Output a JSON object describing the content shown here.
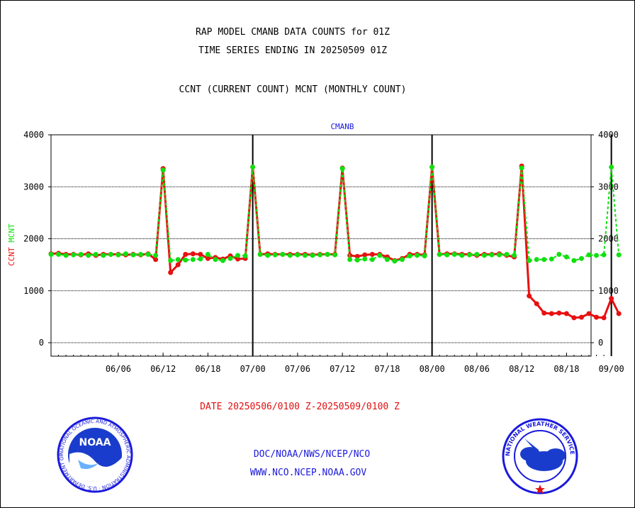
{
  "header": {
    "title_line1": "RAP MODEL CMANB DATA COUNTS for 01Z",
    "title_line2": "TIME SERIES ENDING IN 20250509 01Z",
    "subtitle": "CCNT (CURRENT COUNT) MCNT (MONTHLY COUNT)"
  },
  "footer": {
    "date_range": "DATE 20250506/0100 Z-20250509/0100 Z",
    "org_line": "DOC/NOAA/NWS/NCEP/NCO",
    "website": "WWW.NCO.NCEP.NOAA.GOV"
  },
  "logos": {
    "noaa_label": "NOAA",
    "noaa_ring_text": "NATIONAL OCEANIC AND ATMOSPHERIC ADMINISTRATION · U.S. DEPARTMENT OF COMMERCE ·",
    "nws_ring_text": "NATIONAL WEATHER SERVICE"
  },
  "colors": {
    "ccnt": "#e81010",
    "mcnt": "#10e010",
    "plot_label": "#1a1adc"
  },
  "chart_data": {
    "type": "line",
    "title": "CMANB",
    "ylabel_left": [
      "CCNT",
      "MCNT"
    ],
    "ylim": [
      -250,
      4000
    ],
    "yticks": [
      0,
      1000,
      2000,
      3000,
      4000
    ],
    "x_domain_days": [
      0,
      120
    ],
    "xticks": [
      {
        "label": "06/06",
        "day": 9
      },
      {
        "label": "06/12",
        "day": 15
      },
      {
        "label": "06/18",
        "day": 21
      },
      {
        "label": "07/00",
        "day": 27
      },
      {
        "label": "07/06",
        "day": 33
      },
      {
        "label": "07/12",
        "day": 39
      },
      {
        "label": "07/18",
        "day": 45
      },
      {
        "label": "08/00",
        "day": 51
      },
      {
        "label": "08/06",
        "day": 57
      },
      {
        "label": "08/12",
        "day": 63
      },
      {
        "label": "08/18",
        "day": 69
      },
      {
        "label": "09/00",
        "day": 75
      }
    ],
    "month_lines": [
      27,
      51,
      75
    ],
    "grid": true,
    "series": [
      {
        "name": "CCNT",
        "x": [
          0,
          1,
          2,
          3,
          4,
          5,
          6,
          7,
          8,
          9,
          10,
          11,
          12,
          13,
          14,
          15,
          16,
          17,
          18,
          19,
          20,
          21,
          22,
          23,
          24,
          25,
          26,
          27,
          28,
          29,
          30,
          31,
          32,
          33,
          34,
          35,
          36,
          37,
          38,
          39,
          40,
          41,
          42,
          43,
          44,
          45,
          46,
          47,
          48,
          49,
          50,
          51,
          52,
          53,
          54,
          55,
          56,
          57,
          58,
          59,
          60,
          61,
          62,
          63,
          64,
          65,
          66,
          67,
          68,
          69,
          70,
          71,
          72,
          73,
          74,
          75,
          76
        ],
        "values": [
          1710,
          1720,
          1700,
          1700,
          1690,
          1710,
          1680,
          1700,
          1700,
          1700,
          1690,
          1700,
          1690,
          1710,
          1600,
          3350,
          1350,
          1500,
          1700,
          1710,
          1700,
          1620,
          1640,
          1610,
          1670,
          1610,
          1620,
          3380,
          1700,
          1710,
          1700,
          1700,
          1700,
          1700,
          1700,
          1690,
          1700,
          1700,
          1700,
          3360,
          1680,
          1660,
          1690,
          1700,
          1700,
          1650,
          1580,
          1620,
          1700,
          1700,
          1690,
          3380,
          1700,
          1710,
          1710,
          1700,
          1700,
          1680,
          1700,
          1700,
          1710,
          1680,
          1650,
          3400,
          900,
          750,
          570,
          560,
          570,
          560,
          480,
          490,
          560,
          490,
          480,
          850,
          560
        ]
      },
      {
        "name": "MCNT",
        "x": [
          0,
          1,
          2,
          3,
          4,
          5,
          6,
          7,
          8,
          9,
          10,
          11,
          12,
          13,
          14,
          15,
          16,
          17,
          18,
          19,
          20,
          21,
          22,
          23,
          24,
          25,
          26,
          27,
          28,
          29,
          30,
          31,
          32,
          33,
          34,
          35,
          36,
          37,
          38,
          39,
          40,
          41,
          42,
          43,
          44,
          45,
          46,
          47,
          48,
          49,
          50,
          51,
          52,
          53,
          54,
          55,
          56,
          57,
          58,
          59,
          60,
          61,
          62,
          63,
          64,
          65,
          66,
          67,
          68,
          69,
          70,
          71,
          72,
          73,
          74,
          75,
          76
        ],
        "values": [
          1700,
          1700,
          1680,
          1690,
          1700,
          1680,
          1700,
          1680,
          1700,
          1690,
          1710,
          1690,
          1700,
          1700,
          1680,
          3320,
          1580,
          1600,
          1590,
          1600,
          1610,
          1700,
          1600,
          1580,
          1620,
          1680,
          1670,
          3380,
          1700,
          1680,
          1690,
          1700,
          1680,
          1690,
          1680,
          1680,
          1690,
          1700,
          1690,
          3350,
          1600,
          1590,
          1610,
          1600,
          1680,
          1600,
          1570,
          1600,
          1670,
          1680,
          1670,
          3380,
          1700,
          1690,
          1700,
          1680,
          1690,
          1700,
          1680,
          1690,
          1690,
          1700,
          1680,
          3360,
          1580,
          1600,
          1600,
          1610,
          1700,
          1650,
          1580,
          1620,
          1690,
          1680,
          1690,
          3380,
          1690
        ]
      }
    ]
  }
}
